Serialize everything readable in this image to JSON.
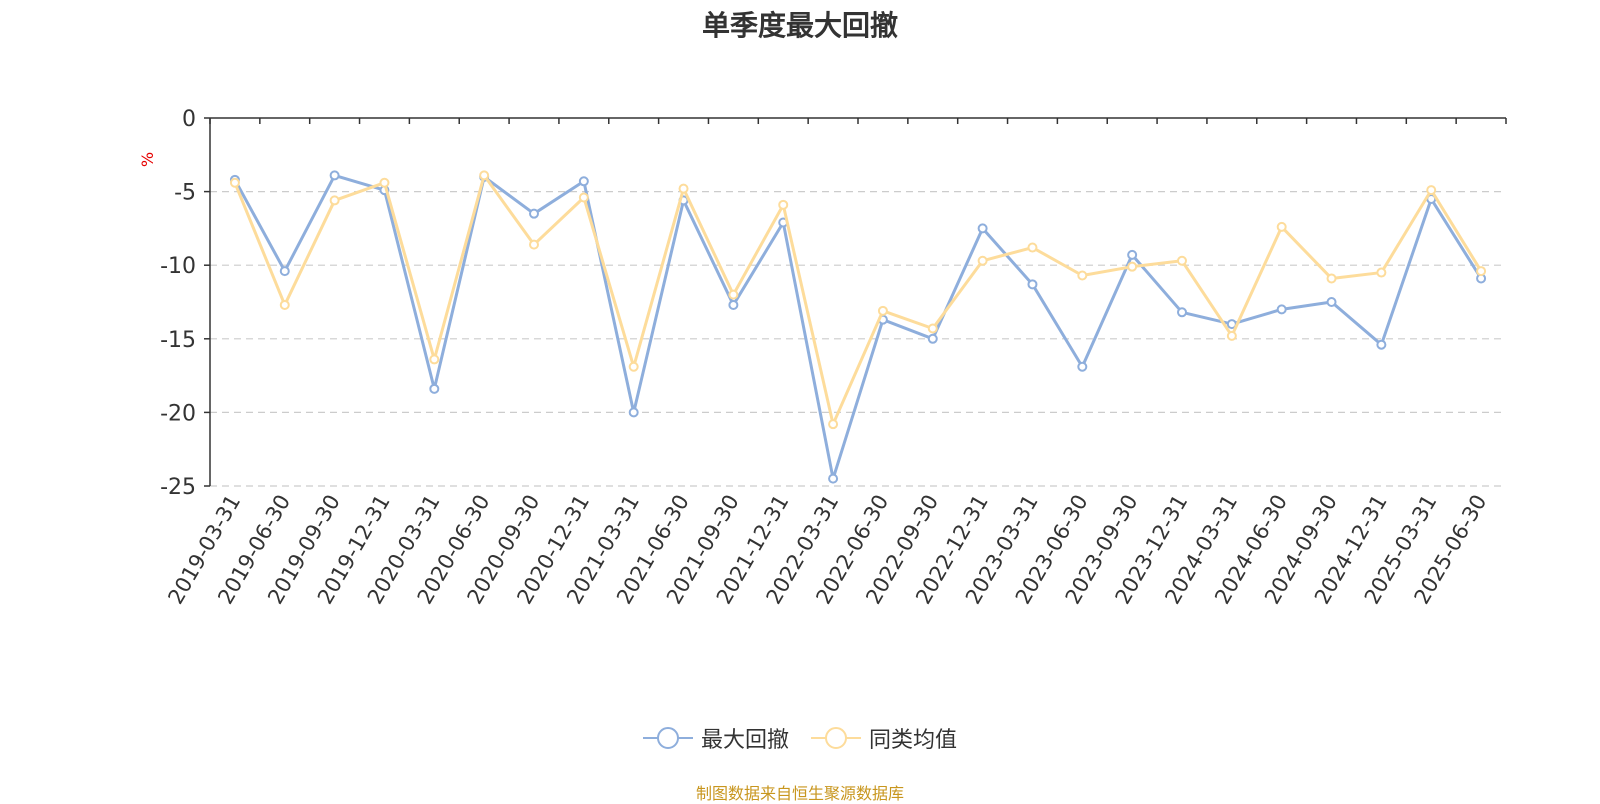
{
  "chart_data": {
    "type": "line",
    "title": "单季度最大回撤",
    "ylabel": "%",
    "ylim": [
      -25,
      0
    ],
    "yticks": [
      0,
      -5,
      -10,
      -15,
      -20,
      -25
    ],
    "grid": true,
    "legend_position": "bottom",
    "x": [
      "2019-03-31",
      "2019-06-30",
      "2019-09-30",
      "2019-12-31",
      "2020-03-31",
      "2020-06-30",
      "2020-09-30",
      "2020-12-31",
      "2021-03-31",
      "2021-06-30",
      "2021-09-30",
      "2021-12-31",
      "2022-03-31",
      "2022-06-30",
      "2022-09-30",
      "2022-12-31",
      "2023-03-31",
      "2023-06-30",
      "2023-09-30",
      "2023-12-31",
      "2024-03-31",
      "2024-06-30",
      "2024-09-30",
      "2024-12-31",
      "2025-03-31",
      "2025-06-30"
    ],
    "series": [
      {
        "name": "最大回撤",
        "color": "#8eaedc",
        "values": [
          -4.2,
          -10.4,
          -3.9,
          -4.9,
          -18.4,
          -4.0,
          -6.5,
          -4.3,
          -20.0,
          -5.6,
          -12.7,
          -7.1,
          -24.5,
          -13.7,
          -15.0,
          -7.5,
          -11.3,
          -16.9,
          -9.3,
          -13.2,
          -14.0,
          -13.0,
          -12.5,
          -15.4,
          -5.5,
          -10.9
        ]
      },
      {
        "name": "同类均值",
        "color": "#fddc9b",
        "values": [
          -4.4,
          -12.7,
          -5.6,
          -4.4,
          -16.4,
          -3.9,
          -8.6,
          -5.4,
          -16.9,
          -4.8,
          -12.0,
          -5.9,
          -20.8,
          -13.1,
          -14.3,
          -9.7,
          -8.8,
          -10.7,
          -10.1,
          -9.7,
          -14.8,
          -7.4,
          -10.9,
          -10.5,
          -4.9,
          -10.4
        ]
      }
    ]
  },
  "source_text": "制图数据来自恒生聚源数据库"
}
